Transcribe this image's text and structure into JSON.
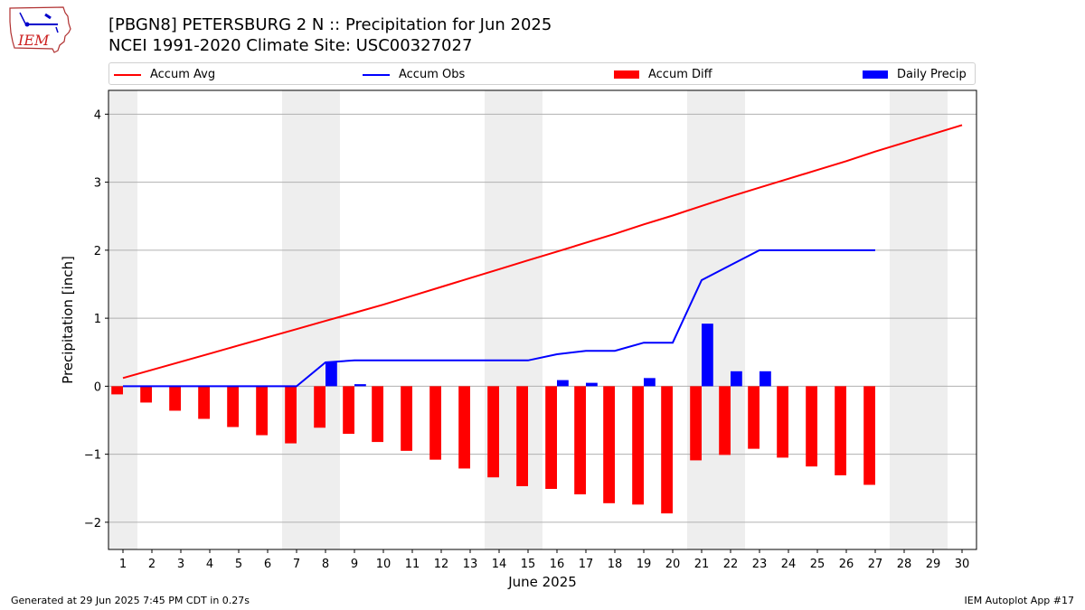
{
  "title": {
    "line1": "[PBGN8] PETERSBURG 2 N :: Precipitation for Jun 2025",
    "line2": "NCEI 1991-2020 Climate Site: USC00327027"
  },
  "logo_text": "IEM",
  "footer": {
    "left": "Generated at 29 Jun 2025 7:45 PM CDT in 0.27s",
    "right": "IEM Autoplot App #17"
  },
  "colors": {
    "accum_avg": "#ff0000",
    "accum_obs": "#0000ff",
    "accum_diff": "#ff0000",
    "daily_precip": "#0000ff",
    "weekend_shade": "#eeeeee",
    "grid": "#b0b0b0"
  },
  "chart_data": {
    "type": "bar",
    "xlabel": "June 2025",
    "ylabel": "Precipitation [inch]",
    "xlim": [
      0.5,
      30.5
    ],
    "ylim": [
      -2.4,
      4.35
    ],
    "yticks": [
      -2,
      -1,
      0,
      1,
      2,
      3,
      4
    ],
    "ytick_labels": [
      "−2",
      "−1",
      "0",
      "1",
      "2",
      "3",
      "4"
    ],
    "grid": "horizontal",
    "legend_placement": "top, above plot",
    "legend": [
      "Accum Avg",
      "Accum Obs",
      "Accum Diff",
      "Daily Precip"
    ],
    "weekend_shading": [
      [
        0.5,
        1.5
      ],
      [
        6.5,
        8.5
      ],
      [
        13.5,
        15.5
      ],
      [
        20.5,
        22.5
      ],
      [
        27.5,
        29.5
      ]
    ],
    "days": [
      1,
      2,
      3,
      4,
      5,
      6,
      7,
      8,
      9,
      10,
      11,
      12,
      13,
      14,
      15,
      16,
      17,
      18,
      19,
      20,
      21,
      22,
      23,
      24,
      25,
      26,
      27,
      28,
      29,
      30
    ],
    "series": [
      {
        "name": "Accum Avg",
        "kind": "line",
        "x": [
          1,
          2,
          3,
          4,
          5,
          6,
          7,
          8,
          9,
          10,
          11,
          12,
          13,
          14,
          15,
          16,
          17,
          18,
          19,
          20,
          21,
          22,
          23,
          24,
          25,
          26,
          27,
          28,
          29,
          30
        ],
        "values": [
          0.12,
          0.24,
          0.36,
          0.48,
          0.6,
          0.72,
          0.84,
          0.96,
          1.08,
          1.2,
          1.33,
          1.46,
          1.59,
          1.72,
          1.85,
          1.98,
          2.11,
          2.24,
          2.38,
          2.51,
          2.65,
          2.79,
          2.92,
          3.05,
          3.18,
          3.31,
          3.45,
          3.58,
          3.71,
          3.84
        ]
      },
      {
        "name": "Accum Obs",
        "kind": "line",
        "x": [
          1,
          2,
          3,
          4,
          5,
          6,
          7,
          8,
          9,
          10,
          11,
          12,
          13,
          14,
          15,
          16,
          17,
          18,
          19,
          20,
          21,
          22,
          23,
          24,
          25,
          26,
          27
        ],
        "values": [
          0,
          0,
          0,
          0,
          0,
          0,
          0,
          0.35,
          0.38,
          0.38,
          0.38,
          0.38,
          0.38,
          0.38,
          0.38,
          0.47,
          0.52,
          0.52,
          0.64,
          0.64,
          1.56,
          1.78,
          2.0,
          2.0,
          2.0,
          2.0,
          2.0
        ]
      },
      {
        "name": "Accum Diff",
        "kind": "bar",
        "x": [
          1,
          2,
          3,
          4,
          5,
          6,
          7,
          8,
          9,
          10,
          11,
          12,
          13,
          14,
          15,
          16,
          17,
          18,
          19,
          20,
          21,
          22,
          23,
          24,
          25,
          26,
          27
        ],
        "values": [
          -0.12,
          -0.24,
          -0.36,
          -0.48,
          -0.6,
          -0.72,
          -0.84,
          -0.61,
          -0.7,
          -0.82,
          -0.95,
          -1.08,
          -1.21,
          -1.34,
          -1.47,
          -1.51,
          -1.59,
          -1.72,
          -1.74,
          -1.87,
          -1.09,
          -1.01,
          -0.92,
          -1.05,
          -1.18,
          -1.31,
          -1.45
        ]
      },
      {
        "name": "Daily Precip",
        "kind": "bar",
        "x": [
          1,
          2,
          3,
          4,
          5,
          6,
          7,
          8,
          9,
          10,
          11,
          12,
          13,
          14,
          15,
          16,
          17,
          18,
          19,
          20,
          21,
          22,
          23,
          24,
          25,
          26,
          27
        ],
        "values": [
          0,
          0,
          0,
          0,
          0,
          0,
          0,
          0.35,
          0.03,
          0,
          0,
          0,
          0,
          0,
          0,
          0.09,
          0.05,
          0,
          0.12,
          0,
          0.92,
          0.22,
          0.22,
          0,
          0,
          0,
          0
        ]
      }
    ]
  }
}
